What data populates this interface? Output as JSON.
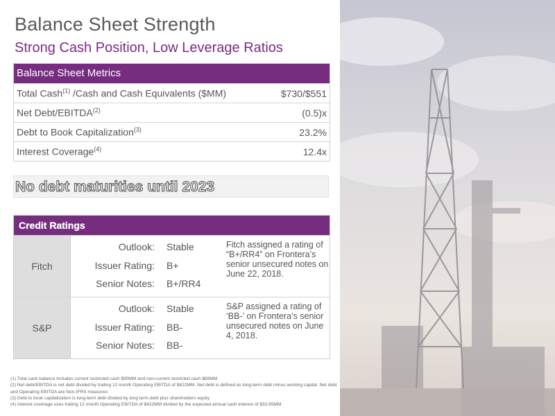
{
  "header": {
    "title": "Balance Sheet Strength",
    "subtitle": "Strong Cash Position, Low Leverage Ratios"
  },
  "metrics_table": {
    "heading": "Balance Sheet Metrics",
    "rows": [
      {
        "label": "Total Cash",
        "sup": "(1)",
        "label_suffix": " /Cash and Cash Equivalents ($MM)",
        "value": "$730/$551"
      },
      {
        "label": "Net Debt/EBITDA",
        "sup": "(2)",
        "label_suffix": "",
        "value": "(0.5)x"
      },
      {
        "label": "Debt to Book Capitalization",
        "sup": "(3)",
        "label_suffix": "",
        "value": "23.2%"
      },
      {
        "label": "Interest Coverage",
        "sup": "(4)",
        "label_suffix": "",
        "value": "12.4x"
      }
    ]
  },
  "banner": {
    "text": "No debt maturities until 2023"
  },
  "ratings_table": {
    "heading": "Credit Ratings",
    "agencies": [
      {
        "name": "Fitch",
        "lines": [
          {
            "label": "Outlook:",
            "value": "Stable"
          },
          {
            "label": "Issuer Rating:",
            "value": "B+"
          },
          {
            "label": "Senior Notes:",
            "value": "B+/RR4"
          }
        ],
        "note": "Fitch assigned a rating of “B+/RR4” on Frontera’s senior unsecured notes on June 22, 2018."
      },
      {
        "name": "S&P",
        "lines": [
          {
            "label": "Outlook:",
            "value": "Stable"
          },
          {
            "label": "Issuer Rating:",
            "value": "BB-"
          },
          {
            "label": "Senior Notes:",
            "value": "BB-"
          }
        ],
        "note": "S&P assigned a rating of ‘BB-’ on Frontera’s senior unsecured notes on June 4, 2018."
      }
    ]
  },
  "footnotes": [
    "(1)  Total cash balance includes current restricted cash $90MM and non-current restricted cash $89MM",
    "(2)  Net debt/EBITDA is net debt divided by trailing 12 month Operating EBITDA of $422MM. Net debt is defined as long-term debt minus working capital. Net debt and Operating EBITDA are Non-IFRS measures",
    "(3)  Debt to book capitalization is long-term debt divided by long term debt plus shareholders equity",
    "(4)  Interest coverage uses trailing 12 month Operating EBITDA of $422MM divided by the expected annual cash interest of $33.95MM"
  ],
  "colors": {
    "accent_purple": "#762c7f",
    "subtitle_purple": "#7b2a83",
    "label_gray": "#dedede"
  },
  "photo": {
    "icon": "drilling-rig-photo"
  }
}
